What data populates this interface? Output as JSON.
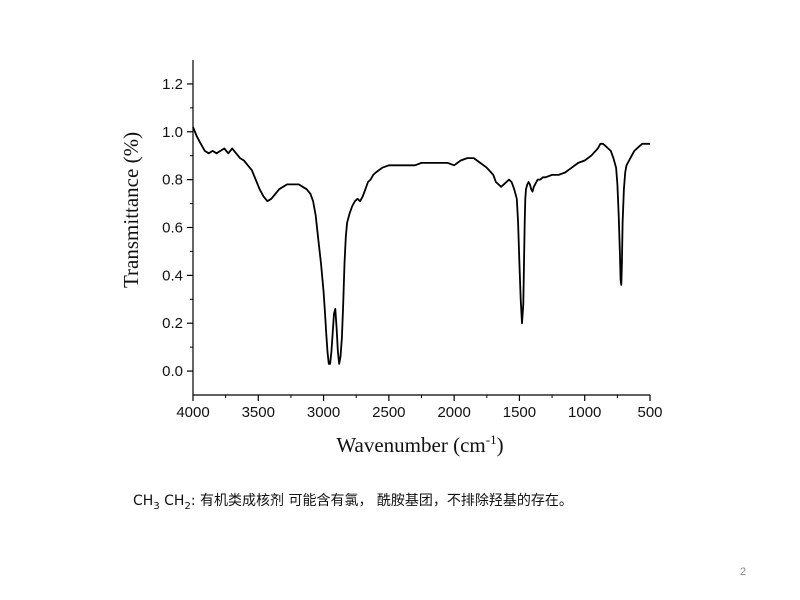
{
  "chart_data": {
    "type": "line",
    "title": "",
    "xlabel": "Wavenumber (cm-1)",
    "xlabel_parts": {
      "base": "Wavenumber (cm",
      "sup": "-1",
      "end": ")"
    },
    "ylabel": "Transmittance (%)",
    "xlim": [
      4000,
      500
    ],
    "ylim": [
      -0.1,
      1.3
    ],
    "xticks": [
      "4000",
      "3500",
      "3000",
      "2500",
      "2000",
      "1500",
      "1000",
      "500"
    ],
    "yticks": [
      "0.0",
      "0.2",
      "0.4",
      "0.6",
      "0.8",
      "1.0",
      "1.2"
    ],
    "xtick_values": [
      4000,
      3500,
      3000,
      2500,
      2000,
      1500,
      1000,
      500
    ],
    "ytick_values": [
      0.0,
      0.2,
      0.4,
      0.6,
      0.8,
      1.0,
      1.2
    ],
    "grid": false,
    "legend": "none",
    "line_color": "#000000",
    "series": [
      {
        "x": [
          4000,
          3970,
          3940,
          3910,
          3880,
          3850,
          3820,
          3790,
          3760,
          3730,
          3700,
          3670,
          3640,
          3610,
          3580,
          3550,
          3520,
          3490,
          3460,
          3430,
          3400,
          3370,
          3340,
          3310,
          3280,
          3250,
          3220,
          3190,
          3160,
          3130,
          3100,
          3080,
          3060,
          3040,
          3020,
          3000,
          2990,
          2980,
          2970,
          2960,
          2950,
          2940,
          2930,
          2920,
          2910,
          2900,
          2890,
          2880,
          2870,
          2860,
          2850,
          2840,
          2830,
          2820,
          2800,
          2780,
          2760,
          2740,
          2720,
          2700,
          2680,
          2660,
          2640,
          2620,
          2600,
          2550,
          2500,
          2450,
          2400,
          2350,
          2300,
          2250,
          2200,
          2150,
          2100,
          2050,
          2000,
          1950,
          1900,
          1850,
          1800,
          1750,
          1700,
          1680,
          1660,
          1640,
          1620,
          1600,
          1580,
          1560,
          1540,
          1520,
          1510,
          1500,
          1490,
          1480,
          1470,
          1465,
          1460,
          1455,
          1450,
          1440,
          1430,
          1420,
          1410,
          1400,
          1390,
          1380,
          1370,
          1360,
          1340,
          1320,
          1300,
          1250,
          1200,
          1150,
          1100,
          1050,
          1000,
          950,
          900,
          880,
          860,
          840,
          820,
          800,
          780,
          760,
          750,
          740,
          730,
          725,
          720,
          715,
          710,
          700,
          690,
          680,
          660,
          640,
          620,
          600,
          580,
          560,
          540,
          520,
          500
        ],
        "y": [
          1.02,
          0.98,
          0.95,
          0.92,
          0.91,
          0.92,
          0.91,
          0.92,
          0.93,
          0.91,
          0.93,
          0.91,
          0.89,
          0.88,
          0.86,
          0.84,
          0.8,
          0.76,
          0.73,
          0.71,
          0.72,
          0.74,
          0.76,
          0.77,
          0.78,
          0.78,
          0.78,
          0.78,
          0.77,
          0.76,
          0.74,
          0.71,
          0.65,
          0.55,
          0.45,
          0.33,
          0.25,
          0.16,
          0.08,
          0.03,
          0.03,
          0.08,
          0.16,
          0.24,
          0.26,
          0.18,
          0.08,
          0.03,
          0.06,
          0.14,
          0.28,
          0.45,
          0.56,
          0.62,
          0.66,
          0.69,
          0.71,
          0.72,
          0.71,
          0.73,
          0.76,
          0.79,
          0.8,
          0.82,
          0.83,
          0.85,
          0.86,
          0.86,
          0.86,
          0.86,
          0.86,
          0.87,
          0.87,
          0.87,
          0.87,
          0.87,
          0.86,
          0.88,
          0.89,
          0.89,
          0.87,
          0.85,
          0.82,
          0.79,
          0.78,
          0.77,
          0.78,
          0.79,
          0.8,
          0.79,
          0.76,
          0.72,
          0.62,
          0.45,
          0.3,
          0.2,
          0.28,
          0.45,
          0.62,
          0.72,
          0.76,
          0.78,
          0.79,
          0.78,
          0.76,
          0.75,
          0.77,
          0.78,
          0.79,
          0.8,
          0.8,
          0.81,
          0.81,
          0.82,
          0.82,
          0.83,
          0.85,
          0.87,
          0.88,
          0.9,
          0.93,
          0.95,
          0.95,
          0.94,
          0.93,
          0.92,
          0.89,
          0.85,
          0.78,
          0.65,
          0.48,
          0.38,
          0.36,
          0.45,
          0.62,
          0.76,
          0.83,
          0.86,
          0.88,
          0.9,
          0.92,
          0.93,
          0.94,
          0.95,
          0.95,
          0.95,
          0.95
        ]
      }
    ]
  },
  "caption": {
    "prefix": "CH",
    "sub1": "3",
    "mid": " CH",
    "sub2": "2",
    "rest": ": 有机类成核剂  可能含有氯，  酰胺基团，不排除羟基的存在。"
  },
  "page_number": "2"
}
